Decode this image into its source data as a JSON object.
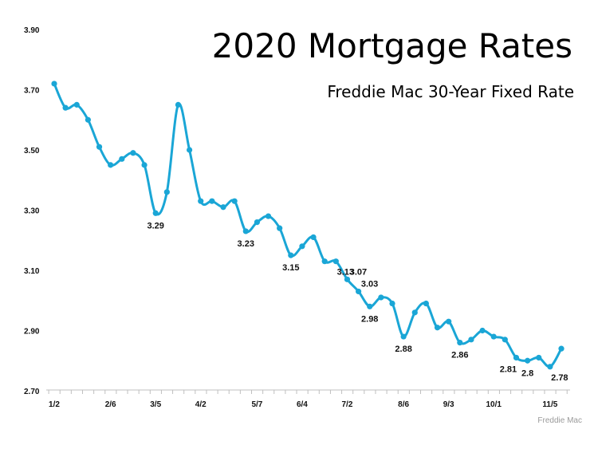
{
  "chart_data": {
    "type": "line",
    "title": "2020 Mortgage Rates",
    "subtitle": "Freddie Mac 30-Year Fixed Rate",
    "source": "Freddie Mac",
    "xlabel": "",
    "ylabel": "",
    "ylim": [
      2.7,
      3.9
    ],
    "yticks": [
      "3.90",
      "3.70",
      "3.50",
      "3.30",
      "3.10",
      "2.90",
      "2.70"
    ],
    "xtick_labels": [
      {
        "label": "1/2",
        "index": 0
      },
      {
        "label": "2/6",
        "index": 5
      },
      {
        "label": "3/5",
        "index": 9
      },
      {
        "label": "4/2",
        "index": 13
      },
      {
        "label": "5/7",
        "index": 18
      },
      {
        "label": "6/4",
        "index": 22
      },
      {
        "label": "7/2",
        "index": 26
      },
      {
        "label": "8/6",
        "index": 31
      },
      {
        "label": "9/3",
        "index": 35
      },
      {
        "label": "10/1",
        "index": 39
      },
      {
        "label": "11/5",
        "index": 44
      }
    ],
    "grid": false,
    "legend": "none",
    "line_color": "#1aa6d6",
    "series": [
      {
        "values": [
          3.72,
          3.64,
          3.65,
          3.6,
          3.51,
          3.45,
          3.47,
          3.49,
          3.45,
          3.29,
          3.36,
          3.65,
          3.5,
          3.33,
          3.33,
          3.31,
          3.33,
          3.23,
          3.26,
          3.28,
          3.24,
          3.15,
          3.18,
          3.21,
          3.13,
          3.13,
          3.07,
          3.03,
          2.98,
          3.01,
          2.99,
          2.88,
          2.96,
          2.99,
          2.91,
          2.93,
          2.86,
          2.87,
          2.9,
          2.88,
          2.87,
          2.81,
          2.8,
          2.81,
          2.78,
          2.84
        ]
      }
    ],
    "data_labels": [
      {
        "index": 9,
        "text": "3.29",
        "position": "below"
      },
      {
        "index": 17,
        "text": "3.23",
        "position": "below"
      },
      {
        "index": 21,
        "text": "3.15",
        "position": "below"
      },
      {
        "index": 25,
        "text": "3.13",
        "position": "below-right"
      },
      {
        "index": 26,
        "text": "3.07",
        "position": "above-right"
      },
      {
        "index": 27,
        "text": "3.03",
        "position": "above-right"
      },
      {
        "index": 28,
        "text": "2.98",
        "position": "below"
      },
      {
        "index": 31,
        "text": "2.88",
        "position": "below"
      },
      {
        "index": 36,
        "text": "2.86",
        "position": "below"
      },
      {
        "index": 41,
        "text": "2.81",
        "position": "below-left"
      },
      {
        "index": 42,
        "text": "2.8",
        "position": "below"
      },
      {
        "index": 44,
        "text": "2.78",
        "position": "below-right"
      }
    ]
  }
}
